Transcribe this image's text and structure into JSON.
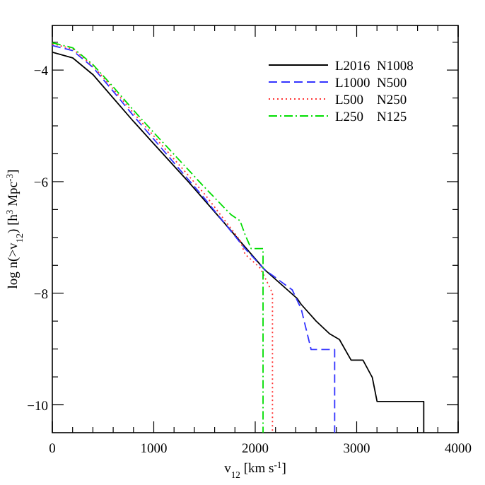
{
  "chart_data": {
    "type": "line",
    "xlabel": "v$_{12}$ [km s$^{-1}$]",
    "ylabel": "log n(>v$_{12}$) [h$^{3}$ Mpc$^{-3}$]",
    "xlim": [
      0,
      4000
    ],
    "ylim": [
      -10.5,
      -3.2
    ],
    "xticks": [
      0,
      {
        "value": 200,
        "label": null
      },
      {
        "value": 400,
        "label": null
      },
      {
        "value": 600,
        "label": null
      },
      {
        "value": 800,
        "label": null
      },
      1000,
      {
        "value": 1200,
        "label": null
      },
      {
        "value": 1400,
        "label": null
      },
      {
        "value": 1600,
        "label": null
      },
      {
        "value": 1800,
        "label": null
      },
      2000,
      {
        "value": 2200,
        "label": null
      },
      {
        "value": 2400,
        "label": null
      },
      {
        "value": 2600,
        "label": null
      },
      {
        "value": 2800,
        "label": null
      },
      3000,
      {
        "value": 3200,
        "label": null
      },
      {
        "value": 3400,
        "label": null
      },
      {
        "value": 3600,
        "label": null
      },
      {
        "value": 3800,
        "label": null
      },
      4000
    ],
    "yticks": [
      -10,
      {
        "value": -9.5,
        "label": null
      },
      {
        "value": -9,
        "label": null
      },
      {
        "value": -8.5,
        "label": null
      },
      -8,
      {
        "value": -7.5,
        "label": null
      },
      {
        "value": -7,
        "label": null
      },
      {
        "value": -6.5,
        "label": null
      },
      -6,
      {
        "value": -5.5,
        "label": null
      },
      {
        "value": -5,
        "label": null
      },
      {
        "value": -4.5,
        "label": null
      },
      -4,
      {
        "value": -3.5,
        "label": null
      }
    ],
    "grid": false,
    "legend": "top right",
    "marker": "none",
    "series": [
      {
        "name": "L2016  N1008",
        "color": "#000000",
        "line_style": "solid",
        "x": [
          0,
          200,
          400,
          600,
          800,
          1000,
          1340,
          1700,
          2094,
          2411,
          2453,
          2600,
          2735,
          2830,
          2945,
          3062,
          3154,
          3201,
          3661,
          3661
        ],
        "values": [
          -3.68,
          -3.78,
          -4.08,
          -4.5,
          -4.92,
          -5.32,
          -6.0,
          -6.75,
          -7.58,
          -8.09,
          -8.2,
          -8.5,
          -8.73,
          -8.83,
          -9.2,
          -9.2,
          -9.51,
          -9.94,
          -9.94,
          -10.5
        ]
      },
      {
        "name": "L1000  N500",
        "color": "#3333ff",
        "line_style": "dashed",
        "x": [
          0,
          200,
          400,
          600,
          800,
          1000,
          1500,
          1900,
          2094,
          2365,
          2453,
          2551,
          2783,
          2783
        ],
        "values": [
          -3.56,
          -3.65,
          -3.95,
          -4.38,
          -4.82,
          -5.24,
          -6.3,
          -7.2,
          -7.58,
          -7.94,
          -8.28,
          -9.01,
          -9.01,
          -10.5
        ]
      },
      {
        "name": "L500    N250",
        "color": "#ff3333",
        "line_style": "dotted",
        "x": [
          0,
          200,
          400,
          600,
          800,
          1000,
          1500,
          1850,
          1900,
          2050,
          2123,
          2170,
          2170
        ],
        "values": [
          -3.53,
          -3.62,
          -3.92,
          -4.34,
          -4.77,
          -5.18,
          -6.22,
          -7.05,
          -7.3,
          -7.55,
          -7.82,
          -8.0,
          -10.5
        ]
      },
      {
        "name": "L250    N125",
        "color": "#00dd00",
        "line_style": "dashdot",
        "x": [
          0,
          200,
          400,
          600,
          800,
          1000,
          1296,
          1500,
          1760,
          1850,
          1900,
          1960,
          2077,
          2077
        ],
        "values": [
          -3.51,
          -3.6,
          -3.9,
          -4.3,
          -4.72,
          -5.12,
          -5.7,
          -6.1,
          -6.59,
          -6.7,
          -6.95,
          -7.2,
          -7.2,
          -10.5
        ]
      }
    ]
  }
}
